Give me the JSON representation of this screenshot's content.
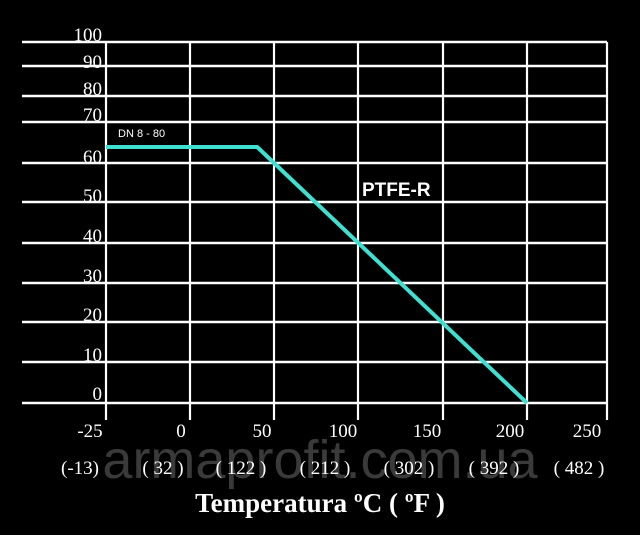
{
  "chart_data": {
    "type": "line",
    "title": "Temperatura ºC  ( ºF )",
    "y_ticks": [
      "100",
      "90",
      "80",
      "70",
      "60",
      "50",
      "40",
      "30",
      "20",
      "10",
      "0"
    ],
    "x_ticks_c": [
      "-25",
      "0",
      "50",
      "100",
      "150",
      "200",
      "250"
    ],
    "x_ticks_f": [
      "(-13)",
      "( 32 )",
      "( 122 )",
      "( 212 )",
      "( 302 )",
      "( 392 )",
      "( 482 )"
    ],
    "series": [
      {
        "name": "PTFE-R",
        "color": "#40e0d0",
        "points": [
          [
            -25,
            64
          ],
          [
            40,
            64
          ],
          [
            200,
            0
          ]
        ]
      }
    ],
    "annotation": "DN 8 - 80",
    "watermark": "armaprofit.com.ua",
    "grid": true
  }
}
